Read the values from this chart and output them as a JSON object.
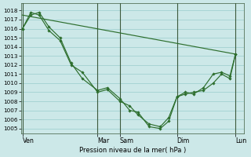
{
  "title": "Pression niveau de la mer( hPa )",
  "bg_color": "#cce8e8",
  "grid_color": "#99cccc",
  "line_color": "#2d6e2d",
  "ylim": [
    1004.5,
    1018.8
  ],
  "yticks": [
    1005,
    1006,
    1007,
    1008,
    1009,
    1010,
    1011,
    1012,
    1013,
    1014,
    1015,
    1016,
    1017,
    1018
  ],
  "xlim": [
    0,
    8.0
  ],
  "xtick_labels": [
    "Ven",
    "Mar",
    "Sam",
    "Dim",
    "Lun"
  ],
  "xtick_positions": [
    0.05,
    2.75,
    3.55,
    5.6,
    7.7
  ],
  "vline_positions": [
    0.05,
    2.75,
    3.55,
    5.6,
    7.7
  ],
  "line1_x": [
    0.05,
    0.35,
    0.65,
    1.0,
    1.4,
    1.8,
    2.2,
    2.75,
    3.1,
    3.55,
    3.9,
    4.2,
    4.6,
    5.0,
    5.3,
    5.6,
    5.9,
    6.2,
    6.55,
    6.9,
    7.2,
    7.5,
    7.7
  ],
  "line1_y": [
    1016.0,
    1017.5,
    1017.8,
    1016.2,
    1015.0,
    1012.2,
    1010.5,
    1009.2,
    1009.5,
    1008.3,
    1007.0,
    1006.8,
    1005.2,
    1005.0,
    1005.8,
    1008.5,
    1008.8,
    1009.0,
    1009.2,
    1010.0,
    1011.0,
    1010.5,
    1013.2
  ],
  "line2_x": [
    0.05,
    0.35,
    0.65,
    1.0,
    1.4,
    1.8,
    2.2,
    2.75,
    3.1,
    3.55,
    3.9,
    4.2,
    4.6,
    5.0,
    5.3,
    5.6,
    5.9,
    6.2,
    6.55,
    6.9,
    7.2,
    7.5,
    7.7
  ],
  "line2_y": [
    1016.0,
    1017.8,
    1017.5,
    1015.8,
    1014.7,
    1012.0,
    1011.2,
    1009.0,
    1009.3,
    1008.0,
    1007.5,
    1006.5,
    1005.5,
    1005.2,
    1006.2,
    1008.5,
    1009.0,
    1008.8,
    1009.5,
    1011.0,
    1011.2,
    1010.8,
    1013.2
  ],
  "line3_x": [
    0.05,
    7.7
  ],
  "line3_y": [
    1017.5,
    1013.2
  ],
  "marker_style": "D",
  "marker_size": 1.8,
  "line_width": 0.85
}
